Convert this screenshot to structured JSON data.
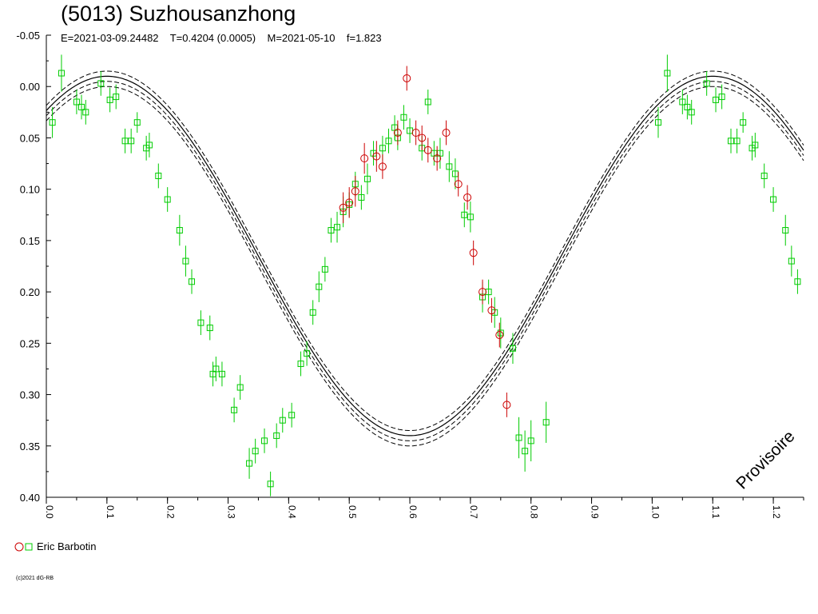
{
  "chart_data": {
    "type": "scatter",
    "title": "(5013) Suzhousanzhong",
    "subtitle": "E=2021-03-09.24482    T=0.4204 (0.0005)    M=2021-05-10    f=1.823",
    "xlabel": "",
    "ylabel": "",
    "xlim": [
      0.0,
      1.25
    ],
    "ylim": [
      -0.05,
      0.4
    ],
    "y_inverted": true,
    "x_ticks": [
      "0.0",
      "0.1",
      "0.2",
      "0.3",
      "0.4",
      "0.5",
      "0.6",
      "0.7",
      "0.8",
      "0.9",
      "1.0",
      "1.1",
      "1.2"
    ],
    "y_ticks": [
      "-0.05",
      "0.00",
      "0.05",
      "0.10",
      "0.15",
      "0.20",
      "0.25",
      "0.30",
      "0.35",
      "0.40"
    ],
    "watermark": "Provisoire",
    "legend_label": "Eric Barbotin",
    "copyright": "(c)2021 dG-RB",
    "model": {
      "mean": 0.165,
      "amplitude": 0.175,
      "peak_phase": 0.1,
      "dashed_offsets": [
        -0.005,
        0.005,
        0.01
      ]
    },
    "series": [
      {
        "marker": "square",
        "color": "#00cc00",
        "points": [
          [
            0.01,
            0.035,
            0.015
          ],
          [
            0.025,
            -0.013,
            0.018
          ],
          [
            0.05,
            0.015,
            0.012
          ],
          [
            0.058,
            0.02,
            0.012
          ],
          [
            0.065,
            0.025,
            0.012
          ],
          [
            0.09,
            -0.003,
            0.012
          ],
          [
            0.105,
            0.013,
            0.012
          ],
          [
            0.115,
            0.01,
            0.012
          ],
          [
            0.13,
            0.053,
            0.012
          ],
          [
            0.14,
            0.053,
            0.012
          ],
          [
            0.15,
            0.035,
            0.01
          ],
          [
            0.165,
            0.06,
            0.012
          ],
          [
            0.17,
            0.057,
            0.012
          ],
          [
            0.185,
            0.087,
            0.012
          ],
          [
            0.2,
            0.11,
            0.012
          ],
          [
            0.22,
            0.14,
            0.015
          ],
          [
            0.23,
            0.17,
            0.015
          ],
          [
            0.24,
            0.19,
            0.012
          ],
          [
            0.255,
            0.23,
            0.012
          ],
          [
            0.27,
            0.235,
            0.012
          ],
          [
            0.275,
            0.28,
            0.012
          ],
          [
            0.28,
            0.275,
            0.012
          ],
          [
            0.29,
            0.28,
            0.012
          ],
          [
            0.31,
            0.315,
            0.012
          ],
          [
            0.32,
            0.293,
            0.012
          ],
          [
            0.335,
            0.367,
            0.015
          ],
          [
            0.345,
            0.355,
            0.012
          ],
          [
            0.36,
            0.345,
            0.012
          ],
          [
            0.37,
            0.387,
            0.012
          ],
          [
            0.38,
            0.34,
            0.012
          ],
          [
            0.39,
            0.325,
            0.012
          ],
          [
            0.405,
            0.32,
            0.012
          ],
          [
            0.42,
            0.27,
            0.012
          ],
          [
            0.43,
            0.26,
            0.012
          ],
          [
            0.44,
            0.22,
            0.012
          ],
          [
            0.45,
            0.195,
            0.015
          ],
          [
            0.46,
            0.178,
            0.012
          ],
          [
            0.47,
            0.14,
            0.012
          ],
          [
            0.48,
            0.137,
            0.015
          ],
          [
            0.49,
            0.122,
            0.015
          ],
          [
            0.5,
            0.115,
            0.012
          ],
          [
            0.51,
            0.095,
            0.012
          ],
          [
            0.52,
            0.108,
            0.012
          ],
          [
            0.53,
            0.09,
            0.015
          ],
          [
            0.54,
            0.065,
            0.012
          ],
          [
            0.555,
            0.06,
            0.012
          ],
          [
            0.565,
            0.053,
            0.012
          ],
          [
            0.575,
            0.04,
            0.012
          ],
          [
            0.58,
            0.05,
            0.012
          ],
          [
            0.59,
            0.03,
            0.012
          ],
          [
            0.6,
            0.043,
            0.012
          ],
          [
            0.62,
            0.06,
            0.012
          ],
          [
            0.63,
            0.015,
            0.012
          ],
          [
            0.64,
            0.065,
            0.012
          ],
          [
            0.65,
            0.065,
            0.015
          ],
          [
            0.665,
            0.078,
            0.015
          ],
          [
            0.675,
            0.085,
            0.015
          ],
          [
            0.69,
            0.125,
            0.012
          ],
          [
            0.7,
            0.127,
            0.015
          ],
          [
            0.72,
            0.205,
            0.015
          ],
          [
            0.73,
            0.2,
            0.012
          ],
          [
            0.74,
            0.22,
            0.015
          ],
          [
            0.75,
            0.24,
            0.015
          ],
          [
            0.77,
            0.255,
            0.015
          ],
          [
            0.78,
            0.342,
            0.02
          ],
          [
            0.79,
            0.355,
            0.02
          ],
          [
            0.8,
            0.345,
            0.02
          ],
          [
            0.825,
            0.327,
            0.02
          ],
          [
            1.01,
            0.035,
            0.015
          ],
          [
            1.025,
            -0.013,
            0.018
          ],
          [
            1.05,
            0.015,
            0.012
          ],
          [
            1.058,
            0.02,
            0.012
          ],
          [
            1.065,
            0.025,
            0.012
          ],
          [
            1.09,
            -0.003,
            0.012
          ],
          [
            1.105,
            0.013,
            0.012
          ],
          [
            1.115,
            0.01,
            0.012
          ],
          [
            1.13,
            0.053,
            0.012
          ],
          [
            1.14,
            0.053,
            0.012
          ],
          [
            1.15,
            0.035,
            0.01
          ],
          [
            1.165,
            0.06,
            0.012
          ],
          [
            1.17,
            0.057,
            0.012
          ],
          [
            1.185,
            0.087,
            0.012
          ],
          [
            1.2,
            0.11,
            0.012
          ],
          [
            1.22,
            0.14,
            0.015
          ],
          [
            1.23,
            0.17,
            0.015
          ],
          [
            1.24,
            0.19,
            0.012
          ]
        ]
      },
      {
        "marker": "circle",
        "color": "#cc0000",
        "points": [
          [
            0.49,
            0.118,
            0.015
          ],
          [
            0.5,
            0.113,
            0.015
          ],
          [
            0.51,
            0.102,
            0.015
          ],
          [
            0.525,
            0.07,
            0.015
          ],
          [
            0.545,
            0.068,
            0.015
          ],
          [
            0.555,
            0.078,
            0.012
          ],
          [
            0.58,
            0.045,
            0.012
          ],
          [
            0.595,
            -0.008,
            0.012
          ],
          [
            0.61,
            0.045,
            0.012
          ],
          [
            0.62,
            0.05,
            0.012
          ],
          [
            0.63,
            0.062,
            0.012
          ],
          [
            0.645,
            0.07,
            0.012
          ],
          [
            0.66,
            0.045,
            0.012
          ],
          [
            0.68,
            0.095,
            0.012
          ],
          [
            0.695,
            0.108,
            0.012
          ],
          [
            0.705,
            0.162,
            0.012
          ],
          [
            0.72,
            0.2,
            0.012
          ],
          [
            0.735,
            0.218,
            0.012
          ],
          [
            0.748,
            0.242,
            0.012
          ],
          [
            0.76,
            0.31,
            0.012
          ]
        ]
      }
    ]
  }
}
